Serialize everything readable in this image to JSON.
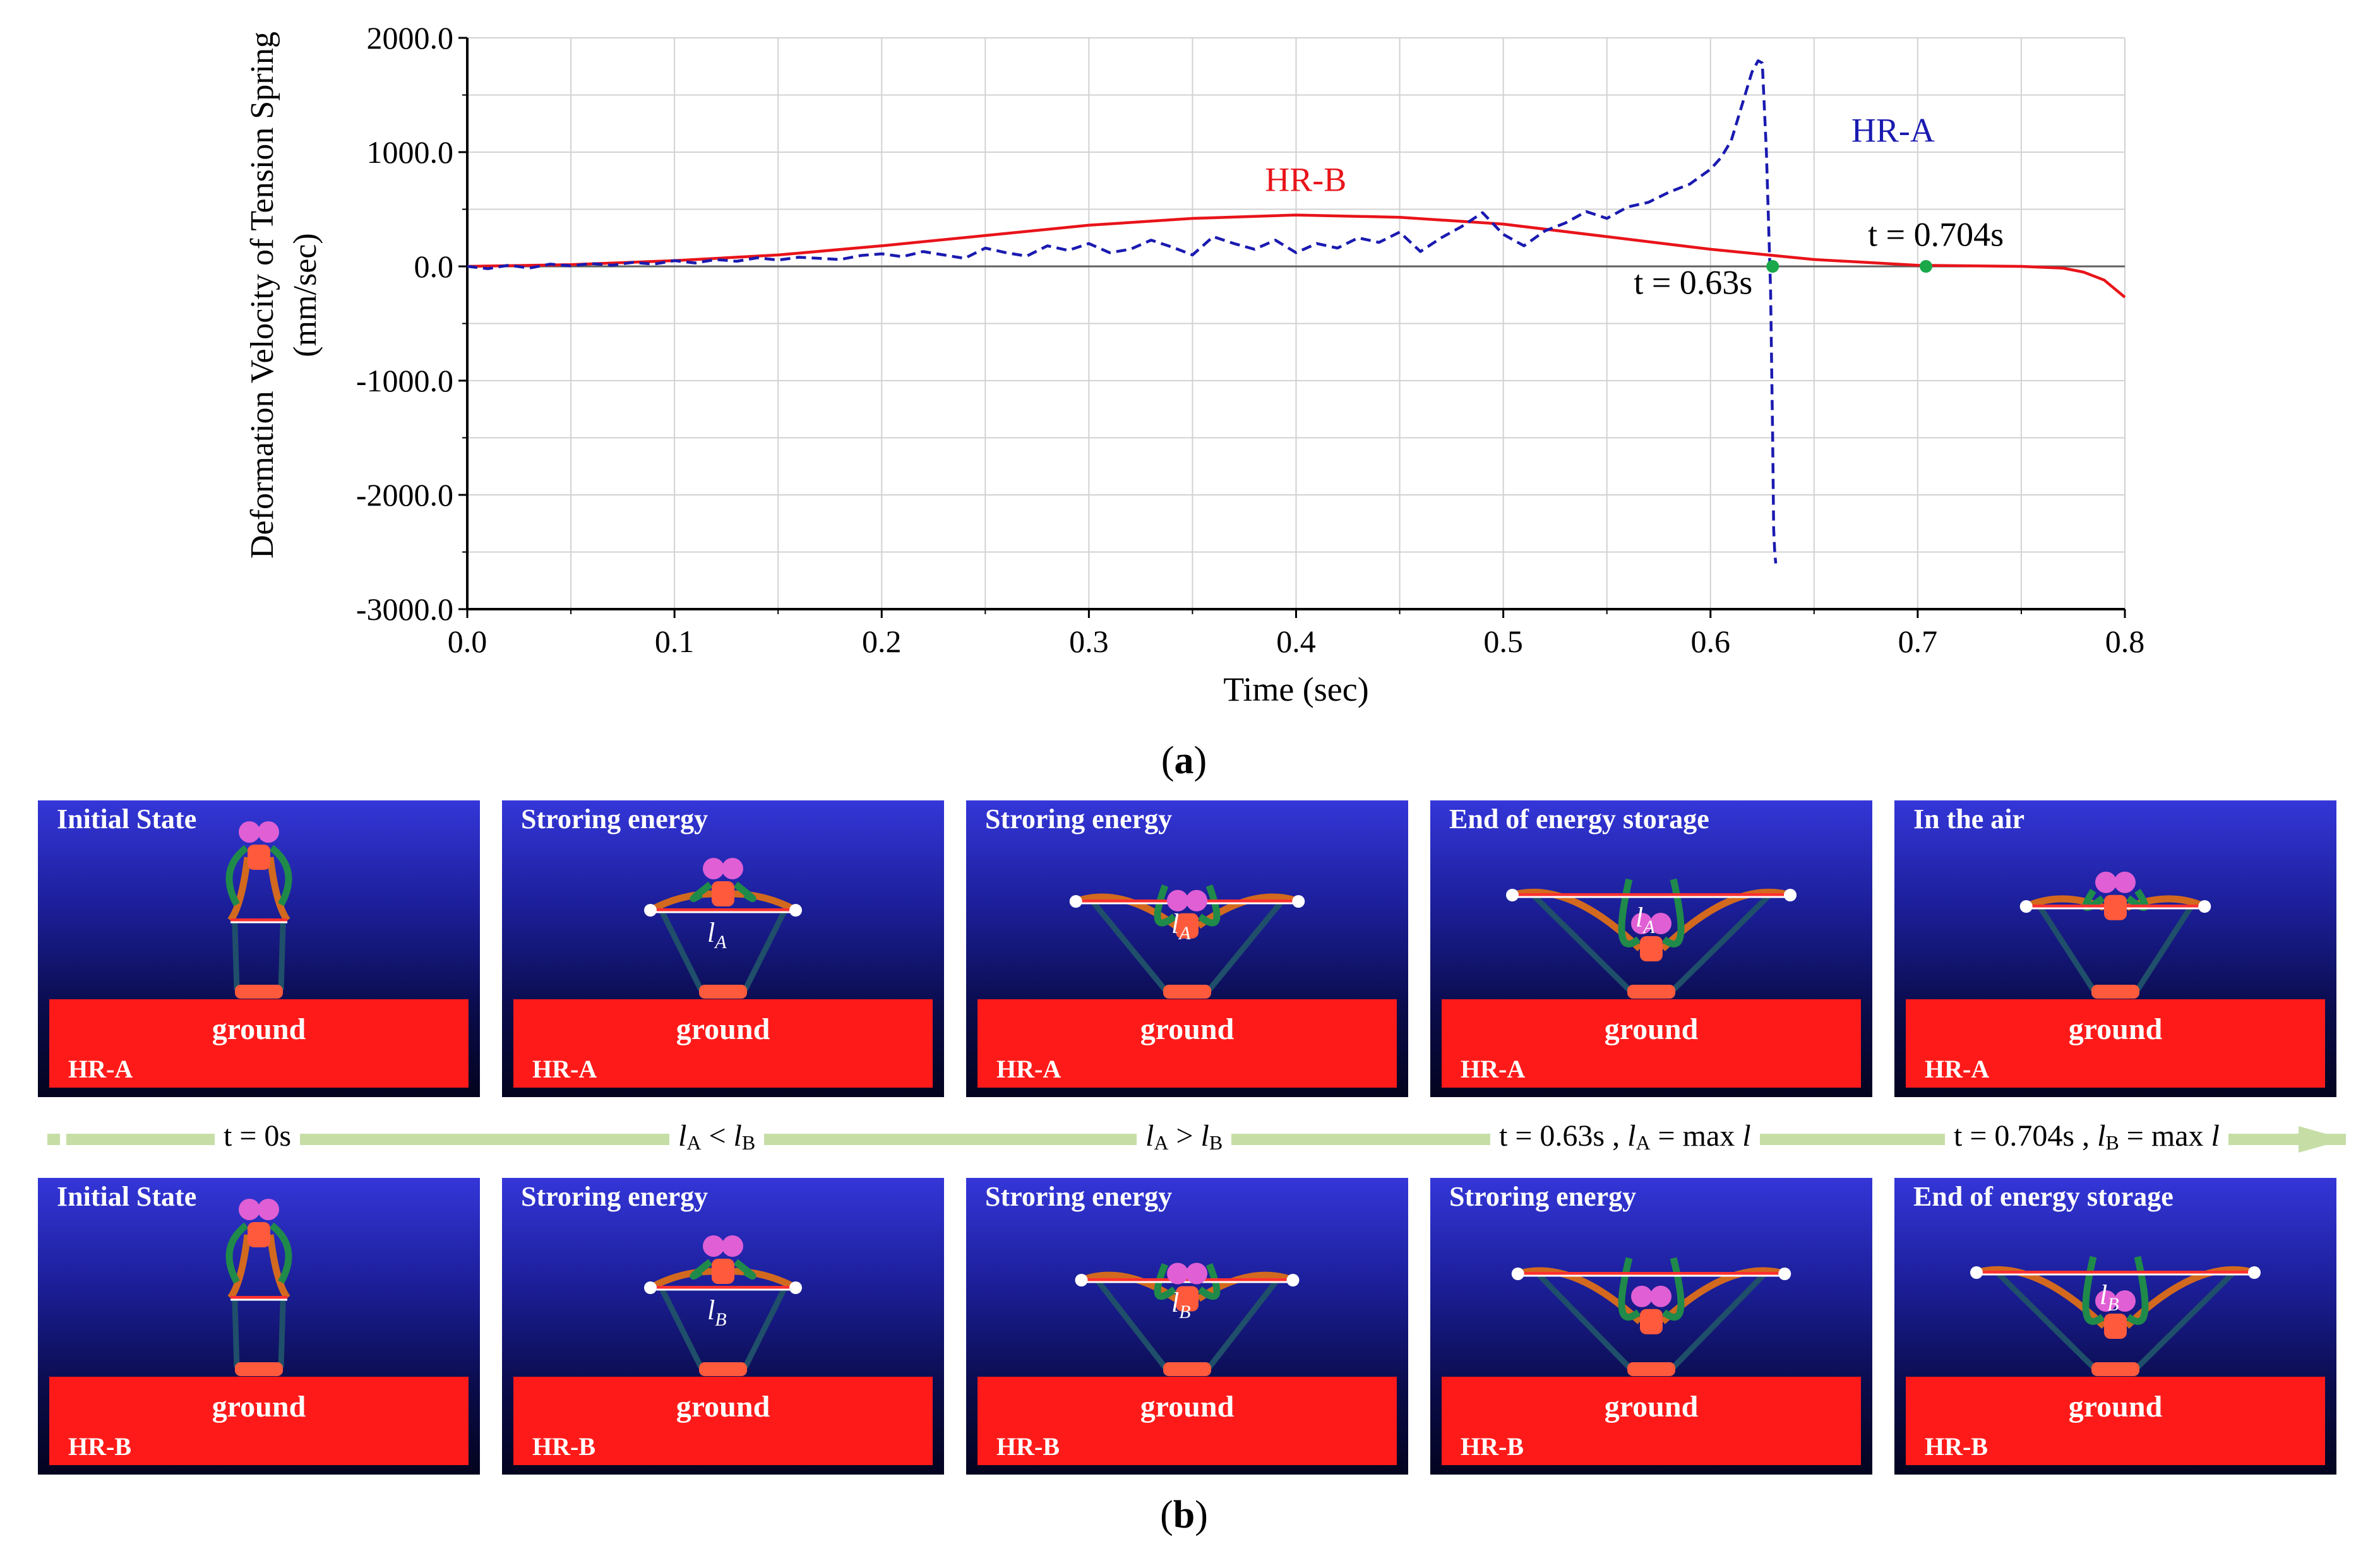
{
  "chart_data": {
    "type": "line",
    "xlabel": "Time (sec)",
    "ylabel": [
      "Deformation Velocity of Tension Spring",
      "(mm/sec)"
    ],
    "xlim": [
      0.0,
      0.8
    ],
    "ylim": [
      -3000.0,
      2000.0
    ],
    "x_ticks": [
      0.0,
      0.1,
      0.2,
      0.3,
      0.4,
      0.5,
      0.6,
      0.7,
      0.8
    ],
    "x_tick_labels": [
      "0.0",
      "0.1",
      "0.2",
      "0.3",
      "0.4",
      "0.5",
      "0.6",
      "0.7",
      "0.8"
    ],
    "y_ticks": [
      2000,
      1000,
      0,
      -1000,
      -2000,
      -3000
    ],
    "y_tick_labels": [
      "2000.0",
      "1000.0",
      "0.0",
      "-1000.0",
      "-2000.0",
      "-3000.0"
    ],
    "grid": true,
    "series": [
      {
        "name": "HR-B",
        "color": "#e8141a",
        "dash": "solid",
        "x": [
          0.0,
          0.05,
          0.1,
          0.15,
          0.2,
          0.25,
          0.3,
          0.35,
          0.4,
          0.45,
          0.5,
          0.55,
          0.6,
          0.65,
          0.7,
          0.75,
          0.77,
          0.78,
          0.79,
          0.8
        ],
        "y": [
          0,
          15,
          50,
          100,
          180,
          270,
          360,
          420,
          450,
          430,
          370,
          260,
          150,
          60,
          10,
          0,
          -15,
          -50,
          -120,
          -270
        ]
      },
      {
        "name": "HR-A",
        "color": "#1a1ab0",
        "dash": "dashed",
        "x": [
          0.0,
          0.01,
          0.02,
          0.03,
          0.04,
          0.05,
          0.06,
          0.07,
          0.08,
          0.09,
          0.1,
          0.11,
          0.12,
          0.13,
          0.14,
          0.15,
          0.16,
          0.17,
          0.18,
          0.19,
          0.2,
          0.21,
          0.22,
          0.23,
          0.24,
          0.25,
          0.26,
          0.27,
          0.28,
          0.29,
          0.3,
          0.31,
          0.32,
          0.33,
          0.34,
          0.35,
          0.36,
          0.37,
          0.38,
          0.39,
          0.4,
          0.41,
          0.42,
          0.43,
          0.44,
          0.45,
          0.46,
          0.47,
          0.48,
          0.49,
          0.5,
          0.51,
          0.52,
          0.53,
          0.54,
          0.55,
          0.56,
          0.57,
          0.58,
          0.59,
          0.6,
          0.605,
          0.61,
          0.615,
          0.62,
          0.623,
          0.625,
          0.627,
          0.629,
          0.63,
          0.6305,
          0.631,
          0.6315
        ],
        "y": [
          0,
          -20,
          10,
          -15,
          20,
          5,
          25,
          10,
          35,
          20,
          50,
          30,
          60,
          45,
          75,
          55,
          80,
          70,
          60,
          95,
          110,
          85,
          130,
          100,
          70,
          160,
          120,
          90,
          180,
          140,
          200,
          120,
          150,
          230,
          170,
          100,
          260,
          200,
          150,
          230,
          120,
          200,
          160,
          250,
          210,
          300,
          130,
          250,
          350,
          470,
          280,
          180,
          310,
          380,
          480,
          420,
          520,
          560,
          650,
          720,
          850,
          950,
          1100,
          1400,
          1700,
          1800,
          1780,
          1000,
          -200,
          -1500,
          -2300,
          -2500,
          -2600
        ]
      }
    ],
    "annotations": [
      {
        "text": "HR-B",
        "color": "#e8141a",
        "x": 0.385,
        "y": 660
      },
      {
        "text": "HR-A",
        "color": "#1a1ab0",
        "x": 0.668,
        "y": 1090
      },
      {
        "text": "t = 0.63s",
        "color": "#000000",
        "x": 0.563,
        "y": -240
      },
      {
        "text": "t = 0.704s",
        "color": "#000000",
        "x": 0.676,
        "y": 180
      }
    ],
    "markers": [
      {
        "name": "t-063-marker",
        "x": 0.63,
        "y": 0,
        "color": "#1aa84a"
      },
      {
        "name": "t-0704-marker",
        "x": 0.704,
        "y": 0,
        "color": "#1aa84a"
      }
    ]
  },
  "labels": {
    "sub_a": "a",
    "sub_b": "b"
  },
  "panels_top": [
    {
      "title": "Initial State",
      "robot": "HR-A",
      "ground": "ground",
      "len_label": "",
      "len_sub": "",
      "wing": 0.0
    },
    {
      "title": "Stroring energy",
      "robot": "HR-A",
      "ground": "ground",
      "len_label": "l",
      "len_sub": "A",
      "wing": 0.4
    },
    {
      "title": "Stroring energy",
      "robot": "HR-A",
      "ground": "ground",
      "len_label": "l",
      "len_sub": "A",
      "wing": 0.75
    },
    {
      "title": "End of energy storage",
      "robot": "HR-A",
      "ground": "ground",
      "len_label": "l",
      "len_sub": "A",
      "wing": 1.0
    },
    {
      "title": "In the air",
      "robot": "HR-A",
      "ground": "ground",
      "len_label": "",
      "len_sub": "",
      "wing": 0.55
    }
  ],
  "panels_bottom": [
    {
      "title": "Initial State",
      "robot": "HR-B",
      "ground": "ground",
      "len_label": "",
      "len_sub": "",
      "wing": 0.0
    },
    {
      "title": "Stroring energy",
      "robot": "HR-B",
      "ground": "ground",
      "len_label": "l",
      "len_sub": "B",
      "wing": 0.4
    },
    {
      "title": "Stroring energy",
      "robot": "HR-B",
      "ground": "ground",
      "len_label": "l",
      "len_sub": "B",
      "wing": 0.7
    },
    {
      "title": "Stroring energy",
      "robot": "HR-B",
      "ground": "ground",
      "len_label": "",
      "len_sub": "",
      "wing": 0.95
    },
    {
      "title": "End of energy storage",
      "robot": "HR-B",
      "ground": "ground",
      "len_label": "l",
      "len_sub": "B",
      "wing": 1.0
    }
  ],
  "timeline": {
    "t0": "t = 0s",
    "cmp1_a": "l",
    "cmp1_a_sub": "A",
    "cmp1_op": " < ",
    "cmp1_b": "l",
    "cmp1_b_sub": "B",
    "cmp2_a": "l",
    "cmp2_a_sub": "A",
    "cmp2_op": " > ",
    "cmp2_b": "l",
    "cmp2_b_sub": "B",
    "t063": "t = 0.63s , ",
    "t063_l": "l",
    "t063_sub": "A",
    "t063_rest": " = max ",
    "t063_max": "l",
    "t0704": "t = 0.704s , ",
    "t0704_l": "l",
    "t0704_sub": "B",
    "t0704_rest": " = max ",
    "t0704_max": "l"
  }
}
